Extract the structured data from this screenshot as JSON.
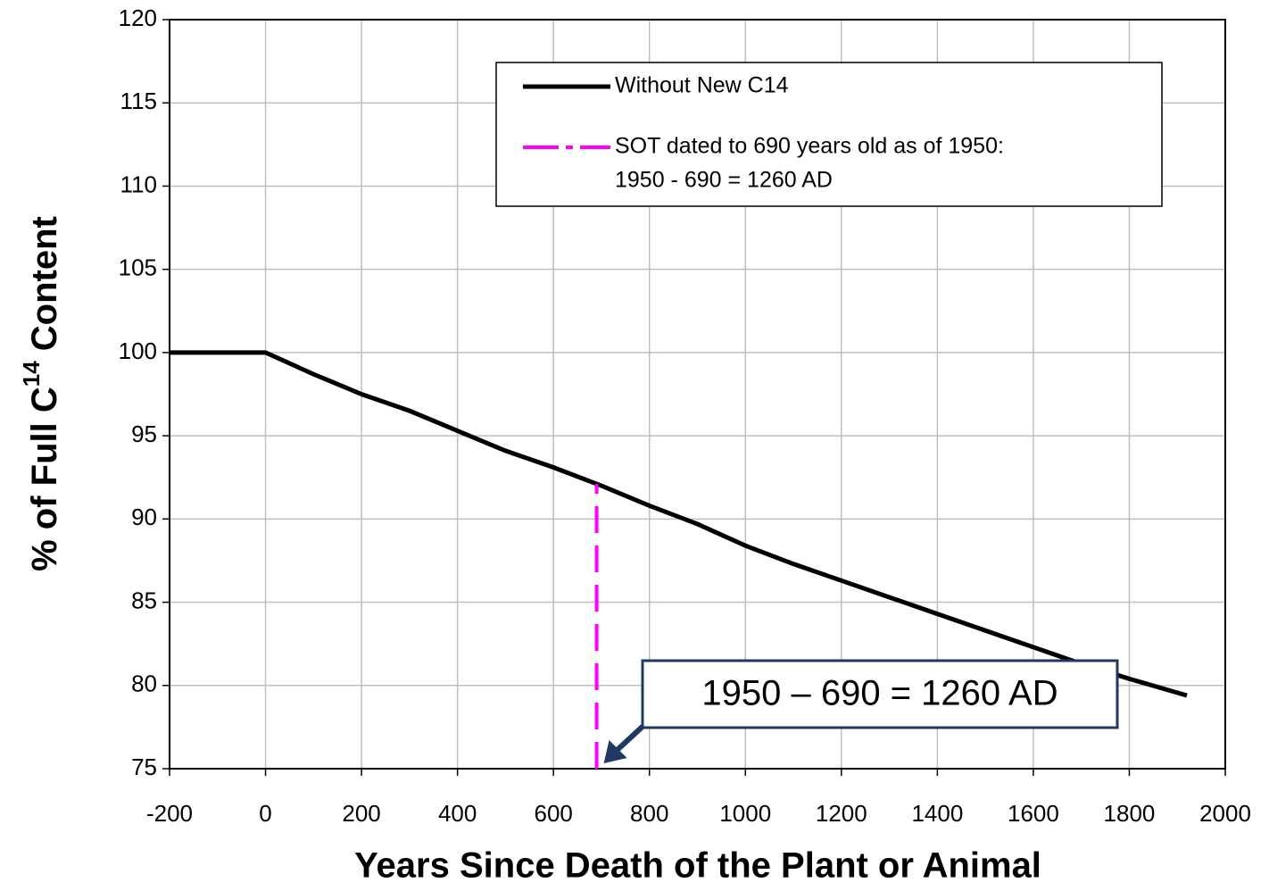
{
  "chart_data": {
    "type": "line",
    "xlabel": "Years Since Death of the Plant or Animal",
    "ylabel": [
      "% of Full C",
      "14",
      " Content"
    ],
    "xlim": [
      -200,
      2000
    ],
    "xticks": [
      -200,
      0,
      200,
      400,
      600,
      800,
      1000,
      1200,
      1400,
      1600,
      1800,
      2000
    ],
    "ylim": [
      75,
      120
    ],
    "yticks": [
      75,
      80,
      85,
      90,
      95,
      100,
      105,
      110,
      115,
      120
    ],
    "grid": true,
    "legend": "upper right",
    "series": [
      {
        "name": [
          "Without New C14"
        ],
        "color": "#000000",
        "style": "solid",
        "x": [
          -200,
          0,
          100,
          200,
          300,
          400,
          500,
          600,
          700,
          800,
          900,
          1000,
          1100,
          1200,
          1300,
          1400,
          1500,
          1600,
          1700,
          1800,
          1920
        ],
        "values": [
          100,
          100,
          98.7,
          97.5,
          96.5,
          95.3,
          94.1,
          93.1,
          92,
          90.8,
          89.7,
          88.4,
          87.3,
          86.3,
          85.3,
          84.3,
          83.3,
          82.3,
          81.3,
          80.4,
          79.4
        ]
      },
      {
        "name": [
          "SOT dated to 690 years old as of 1950:",
          "1950 - 690 = 1260 AD"
        ],
        "color": "#ff00ff",
        "style": "dashdot",
        "x": [
          690,
          690
        ],
        "values": [
          75,
          92.1
        ]
      }
    ],
    "annotation": "1950 – 690 = 1260 AD"
  }
}
